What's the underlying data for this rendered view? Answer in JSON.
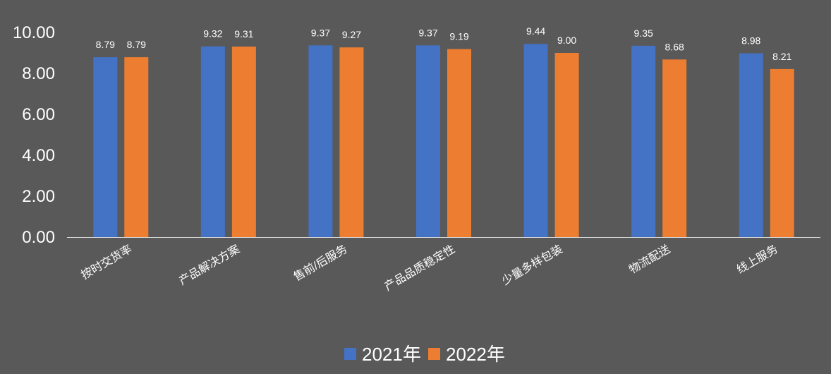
{
  "chart_data": {
    "type": "bar",
    "categories": [
      "按时交货率",
      "产品解决方案",
      "售前/后服务",
      "产品品质稳定性",
      "少量多样包装",
      "物流配送",
      "线上服务"
    ],
    "series": [
      {
        "name": "2021年",
        "values": [
          8.79,
          9.32,
          9.37,
          9.37,
          9.44,
          9.35,
          8.98
        ],
        "color": "#4472C4"
      },
      {
        "name": "2022年",
        "values": [
          8.79,
          9.31,
          9.27,
          9.19,
          9.0,
          8.68,
          8.21
        ],
        "color": "#ED7D31"
      }
    ],
    "ylim": [
      0,
      10
    ],
    "yticks": [
      "0.00",
      "2.00",
      "4.00",
      "6.00",
      "8.00",
      "10.00"
    ],
    "legend_position": "bottom",
    "grid": false
  },
  "colors": {
    "background": "#595959",
    "axis": "#D9D9D9",
    "text": "#FFFFFF"
  }
}
